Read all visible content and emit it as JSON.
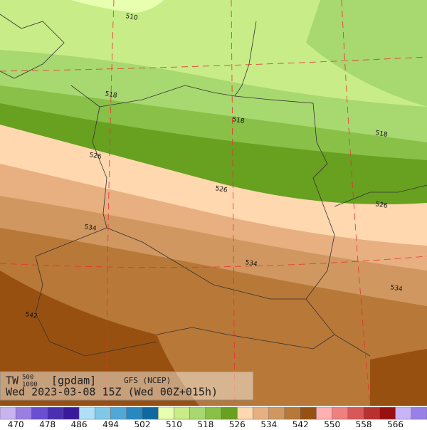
{
  "header": {
    "variable": "TW",
    "sup": "500",
    "sub": "1000",
    "unit": "[gpdam]",
    "model": "GFS (NCEP)",
    "time": "Wed 2023-03-08 15Z (Wed 00Z+015h)"
  },
  "contour_labels": [
    "510",
    "518",
    "518",
    "518",
    "526",
    "526",
    "526",
    "534",
    "534",
    "534",
    "542"
  ],
  "colorbar": {
    "colors": [
      "#c8b4f0",
      "#9b7fe0",
      "#6a4fd0",
      "#4a30b0",
      "#3a1a9a",
      "#b0e0f8",
      "#80c8e8",
      "#50a8d8",
      "#2888c0",
      "#1068a0",
      "#e8ffb0",
      "#c8ec88",
      "#a8d870",
      "#88c048",
      "#68a020",
      "#ffd8b0",
      "#e8b080",
      "#d09860",
      "#b87838",
      "#985010",
      "#ffb0b0",
      "#f08080",
      "#d85858",
      "#b83030",
      "#981010",
      "#c8b4f8",
      "#9880e8"
    ],
    "labels": [
      470,
      478,
      486,
      494,
      502,
      510,
      518,
      526,
      534,
      542,
      550,
      558,
      566
    ]
  }
}
